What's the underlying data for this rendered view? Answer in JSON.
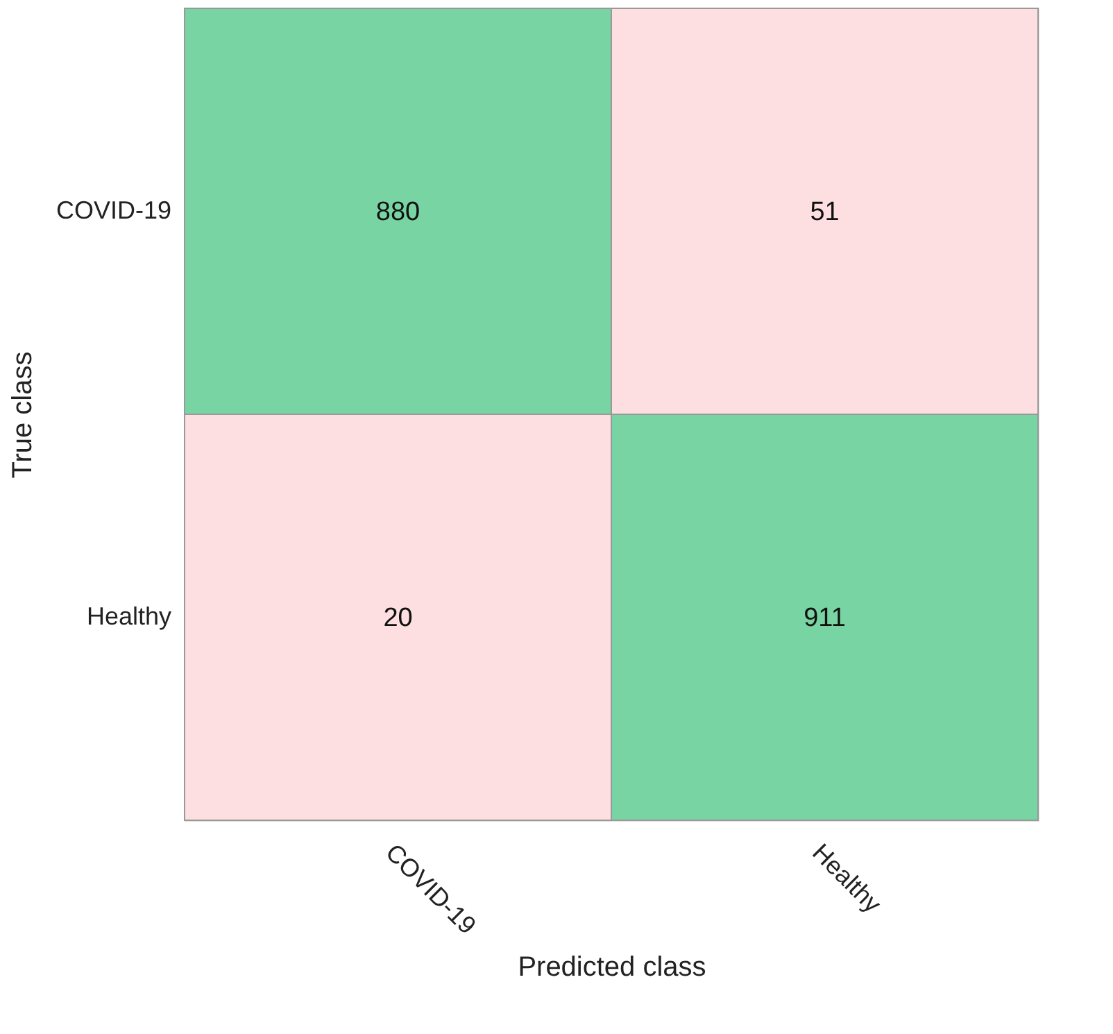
{
  "chart_data": {
    "type": "heatmap",
    "xlabel": "Predicted class",
    "ylabel": "True class",
    "categories": [
      "COVID-19",
      "Healthy"
    ],
    "y_categories": [
      "COVID-19",
      "Healthy"
    ],
    "cells": [
      [
        880,
        51
      ],
      [
        20,
        911
      ]
    ],
    "colors": [
      "#79d4a3",
      "#fddfe1",
      "#fddfe1",
      "#79d4a3"
    ],
    "data_labels": true,
    "grid": false
  }
}
